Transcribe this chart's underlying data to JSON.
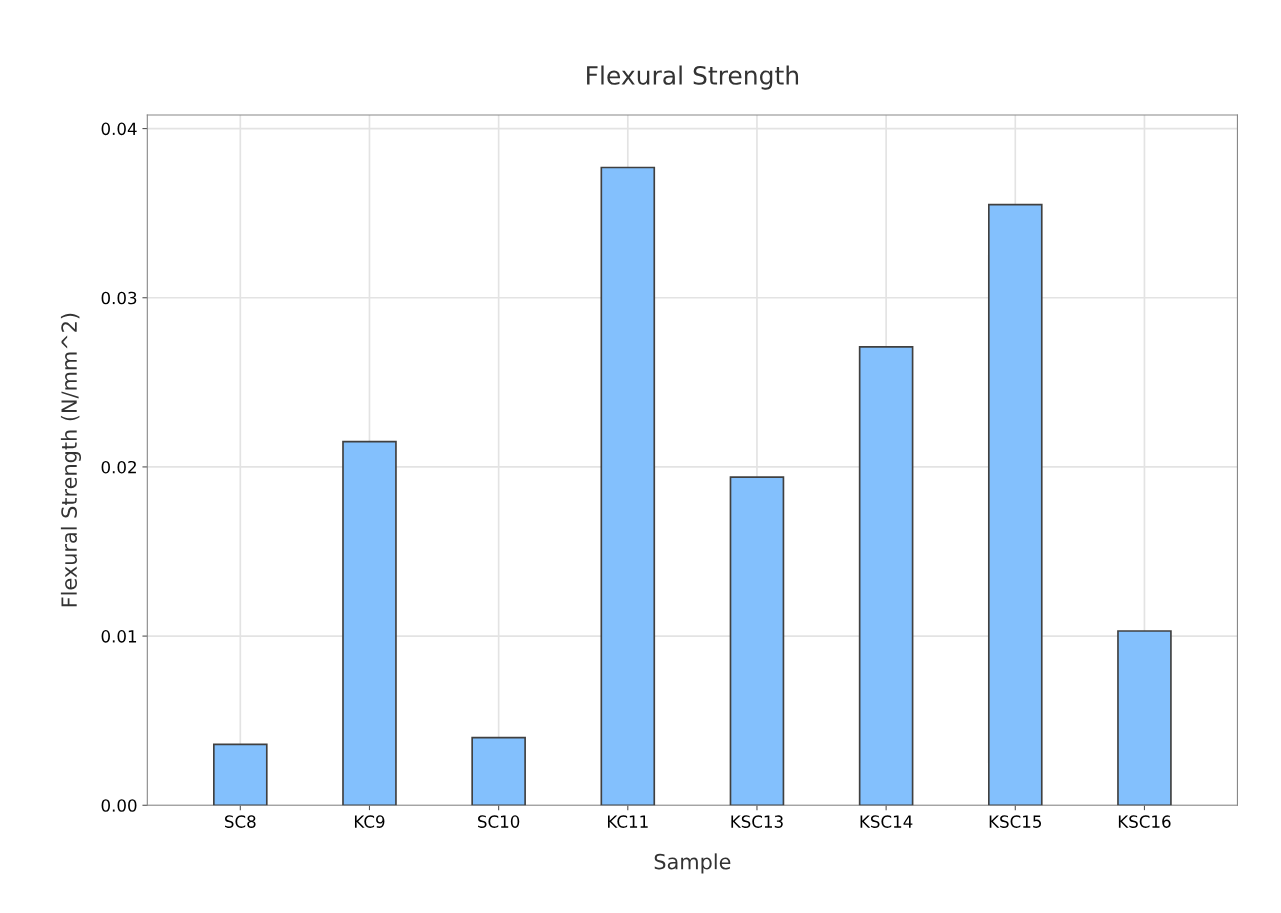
{
  "chart_data": {
    "type": "bar",
    "title": "Flexural Strength",
    "xlabel": "Sample",
    "ylabel": "Flexural Strength (N/mm^2)",
    "categories": [
      "SC8",
      "KC9",
      "SC10",
      "KC11",
      "KSC13",
      "KSC14",
      "KSC15",
      "KSC16"
    ],
    "values": [
      0.0036,
      0.0215,
      0.004,
      0.0377,
      0.0194,
      0.0271,
      0.0355,
      0.0103
    ],
    "color": "#83c0fd",
    "ylim": [
      0,
      0.0408
    ],
    "yticks": [
      {
        "value": 0,
        "label": "0.00"
      },
      {
        "value": 0.01,
        "label": "0.01"
      },
      {
        "value": 0.02,
        "label": "0.02"
      },
      {
        "value": 0.03,
        "label": "0.03"
      },
      {
        "value": 0.04,
        "label": "0.04"
      }
    ],
    "grid": true
  }
}
